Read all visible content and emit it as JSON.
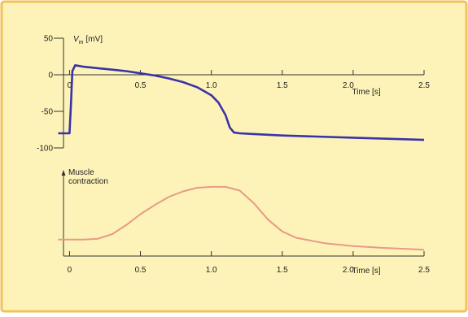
{
  "colors": {
    "background": "#fdf3b8",
    "frame": "#f2c25a",
    "axis": "#333333",
    "vm_curve": "#3a33a8",
    "contraction_curve": "#e89a86"
  },
  "chart_data": [
    {
      "type": "line",
      "ylabel_symbol": "V",
      "ylabel_subscript": "m",
      "ylabel_unit": "[mV]",
      "xlabel": "Time [s]",
      "xlim": [
        -0.1,
        2.5
      ],
      "ylim": [
        -100,
        50
      ],
      "x_ticks": [
        "0",
        "0.5",
        "1.0",
        "1.5",
        "2.0",
        "2.5"
      ],
      "x_tick_values": [
        0,
        0.5,
        1.0,
        1.5,
        2.0,
        2.5
      ],
      "y_ticks": [
        "50",
        "0",
        "-50",
        "-100"
      ],
      "y_tick_values": [
        50,
        0,
        -50,
        -100
      ],
      "series": [
        {
          "x": [
            -0.08,
            0.0,
            0.01,
            0.02,
            0.04,
            0.1,
            0.2,
            0.3,
            0.4,
            0.5,
            0.6,
            0.7,
            0.8,
            0.9,
            1.0,
            1.05,
            1.1,
            1.13,
            1.16,
            1.2,
            1.3,
            1.5,
            2.0,
            2.5
          ],
          "y": [
            -80,
            -80,
            -40,
            5,
            13,
            11,
            9,
            7,
            5,
            2,
            -1,
            -5,
            -10,
            -17,
            -28,
            -38,
            -55,
            -72,
            -79,
            -80,
            -81,
            -83,
            -86,
            -89
          ]
        }
      ]
    },
    {
      "type": "line",
      "ylabel": "Muscle contraction",
      "xlabel": "Time [s]",
      "xlim": [
        -0.1,
        2.5
      ],
      "ylim": [
        0,
        1
      ],
      "x_ticks": [
        "0",
        "0.5",
        "1.0",
        "1.5",
        "2.0",
        "2.5"
      ],
      "x_tick_values": [
        0,
        0.5,
        1.0,
        1.5,
        2.0,
        2.5
      ],
      "series": [
        {
          "x": [
            -0.08,
            0.1,
            0.2,
            0.3,
            0.4,
            0.5,
            0.6,
            0.7,
            0.8,
            0.9,
            1.0,
            1.1,
            1.2,
            1.3,
            1.4,
            1.5,
            1.6,
            1.8,
            2.0,
            2.2,
            2.5
          ],
          "y": [
            0.18,
            0.18,
            0.19,
            0.24,
            0.34,
            0.46,
            0.56,
            0.65,
            0.71,
            0.75,
            0.76,
            0.76,
            0.72,
            0.58,
            0.4,
            0.27,
            0.2,
            0.14,
            0.11,
            0.09,
            0.07
          ]
        }
      ]
    }
  ]
}
